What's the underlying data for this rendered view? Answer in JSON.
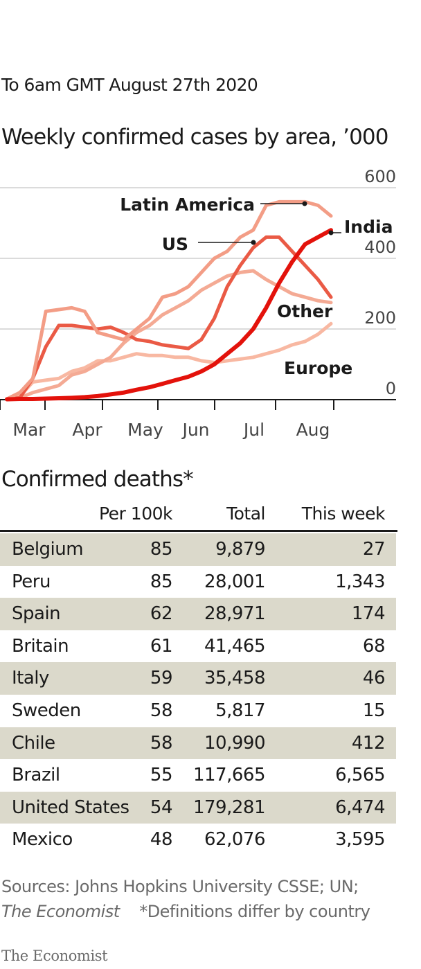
{
  "date_line": "To 6am GMT August 27th 2020",
  "chart_data": {
    "type": "line",
    "title": "Weekly confirmed cases by area, ’000",
    "ylim": [
      0,
      600
    ],
    "yticks": [
      0,
      200,
      400,
      600
    ],
    "x": [
      "Mar 1",
      "Mar 8",
      "Mar 15",
      "Mar 22",
      "Mar 29",
      "Apr 5",
      "Apr 12",
      "Apr 19",
      "Apr 26",
      "May 3",
      "May 10",
      "May 17",
      "May 24",
      "May 31",
      "Jun 7",
      "Jun 14",
      "Jun 21",
      "Jun 28",
      "Jul 5",
      "Jul 12",
      "Jul 19",
      "Jul 26",
      "Aug 2",
      "Aug 9",
      "Aug 16",
      "Aug 23"
    ],
    "xtick_labels": [
      "Mar",
      "Apr",
      "May",
      "Jun",
      "Jul",
      "Aug"
    ],
    "grid": true,
    "series": [
      {
        "name": "Europe",
        "color": "#f8b8a2",
        "values": [
          2,
          10,
          50,
          55,
          60,
          80,
          90,
          110,
          110,
          120,
          130,
          125,
          125,
          120,
          120,
          110,
          105,
          110,
          115,
          120,
          130,
          140,
          155,
          165,
          185,
          215
        ]
      },
      {
        "name": "Other",
        "color": "#f4aa94",
        "values": [
          2,
          5,
          20,
          30,
          40,
          70,
          80,
          100,
          120,
          160,
          190,
          210,
          240,
          260,
          280,
          310,
          330,
          350,
          360,
          365,
          340,
          320,
          300,
          290,
          280,
          275
        ]
      },
      {
        "name": "US",
        "color": "#ea5a45",
        "values": [
          2,
          5,
          60,
          150,
          210,
          210,
          205,
          200,
          205,
          190,
          170,
          165,
          155,
          150,
          145,
          170,
          230,
          320,
          380,
          430,
          460,
          460,
          420,
          380,
          340,
          290
        ]
      },
      {
        "name": "Latin America",
        "color": "#f39d86",
        "values": [
          2,
          20,
          60,
          250,
          255,
          260,
          250,
          190,
          180,
          170,
          200,
          230,
          290,
          300,
          320,
          360,
          400,
          420,
          460,
          480,
          550,
          560,
          560,
          560,
          550,
          520
        ]
      },
      {
        "name": "India",
        "color": "#e3120b",
        "values": [
          1,
          2,
          2,
          3,
          4,
          5,
          7,
          10,
          15,
          20,
          28,
          35,
          45,
          55,
          65,
          80,
          100,
          130,
          160,
          200,
          260,
          330,
          390,
          440,
          460,
          480
        ]
      }
    ],
    "annotations": [
      "Latin America",
      "India",
      "US",
      "Other",
      "Europe"
    ]
  },
  "table": {
    "title": "Confirmed deaths*",
    "columns": [
      "",
      "Per 100k",
      "Total",
      "This week"
    ],
    "rows": [
      [
        "Belgium",
        "85",
        "9,879",
        "27"
      ],
      [
        "Peru",
        "85",
        "28,001",
        "1,343"
      ],
      [
        "Spain",
        "62",
        "28,971",
        "174"
      ],
      [
        "Britain",
        "61",
        "41,465",
        "68"
      ],
      [
        "Italy",
        "59",
        "35,458",
        "46"
      ],
      [
        "Sweden",
        "58",
        "5,817",
        "15"
      ],
      [
        "Chile",
        "58",
        "10,990",
        "412"
      ],
      [
        "Brazil",
        "55",
        "117,665",
        "6,565"
      ],
      [
        "United States",
        "54",
        "179,281",
        "6,474"
      ],
      [
        "Mexico",
        "48",
        "62,076",
        "3,595"
      ]
    ],
    "shade_color": "#dbd9cb"
  },
  "footer": {
    "sources": "Sources: Johns Hopkins University CSSE; UN;",
    "publication": "The Economist",
    "note": "*Definitions differ by country",
    "brand": "The Economist"
  }
}
